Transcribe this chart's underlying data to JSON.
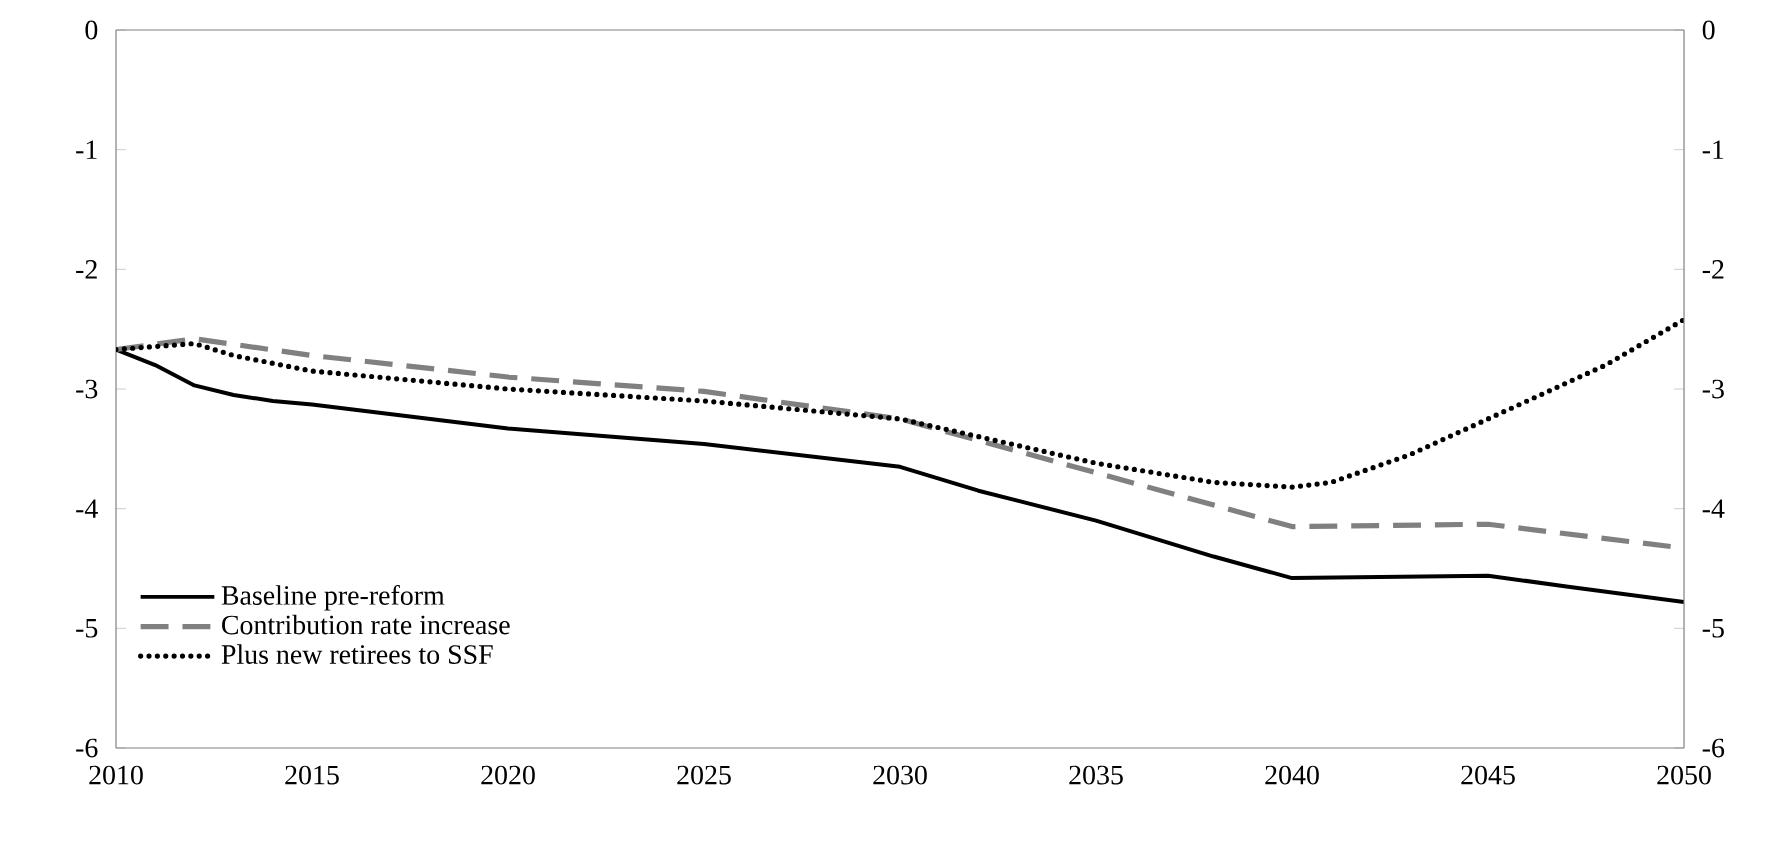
{
  "chart_data": {
    "type": "line",
    "xlim": [
      2010,
      2050
    ],
    "xticks": [
      2010,
      2015,
      2020,
      2025,
      2030,
      2035,
      2040,
      2045,
      2050
    ],
    "ylim": [
      -6,
      0
    ],
    "yticks": [
      -6,
      -5,
      -4,
      -3,
      -2,
      -1,
      0
    ],
    "y2lim": [
      -6,
      0
    ],
    "y2ticks": [
      -6,
      -5,
      -4,
      -3,
      -2,
      -1,
      0
    ],
    "grid": false,
    "legend": "bottom left",
    "series": [
      {
        "name": "Baseline pre-reform",
        "color": "#000000",
        "line_style": "solid",
        "x": [
          2010,
          2011,
          2012,
          2013,
          2014,
          2015,
          2020,
          2025,
          2030,
          2032,
          2035,
          2038,
          2040,
          2045,
          2047,
          2050
        ],
        "values": [
          -2.67,
          -2.8,
          -2.97,
          -3.05,
          -3.1,
          -3.13,
          -3.33,
          -3.46,
          -3.65,
          -3.85,
          -4.1,
          -4.4,
          -4.58,
          -4.56,
          -4.65,
          -4.78
        ]
      },
      {
        "name": "Contribution rate increase",
        "color": "#808080",
        "line_style": "dashed",
        "x": [
          2010,
          2012,
          2015,
          2020,
          2025,
          2030,
          2035,
          2040,
          2045,
          2050
        ],
        "values": [
          -2.67,
          -2.58,
          -2.72,
          -2.9,
          -3.02,
          -3.25,
          -3.7,
          -4.15,
          -4.13,
          -4.33
        ]
      },
      {
        "name": "Plus new retirees to SSF",
        "color": "#000000",
        "line_style": "dotted",
        "x": [
          2010,
          2012,
          2013,
          2015,
          2020,
          2025,
          2030,
          2035,
          2038,
          2040,
          2041,
          2043,
          2045,
          2048,
          2050
        ],
        "values": [
          -2.67,
          -2.62,
          -2.72,
          -2.85,
          -3.0,
          -3.1,
          -3.25,
          -3.62,
          -3.78,
          -3.82,
          -3.78,
          -3.55,
          -3.25,
          -2.8,
          -2.42
        ]
      }
    ]
  }
}
